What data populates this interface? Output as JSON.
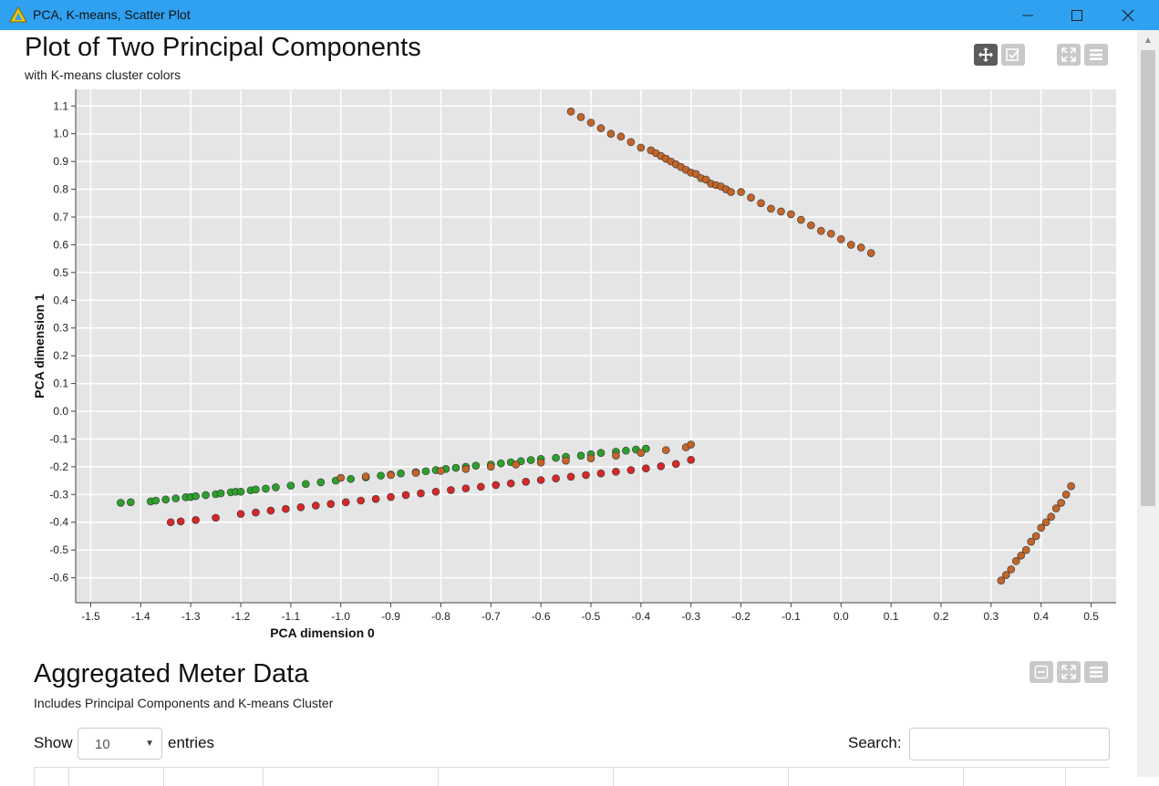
{
  "window": {
    "title": "PCA, K-means, Scatter Plot",
    "minimize": "—",
    "maximize": "☐",
    "close": "✕"
  },
  "plot": {
    "title": "Plot of Two Principal Components",
    "subtitle": "with K-means cluster colors",
    "tools": [
      "move-icon",
      "select-icon",
      "fullscreen-icon",
      "menu-icon"
    ]
  },
  "chart_data": {
    "type": "scatter",
    "xlabel": "PCA dimension 0",
    "ylabel": "PCA dimension 1",
    "xlim": [
      -1.53,
      0.55
    ],
    "ylim": [
      -0.69,
      1.16
    ],
    "xticks": [
      "-1.5",
      "-1.4",
      "-1.3",
      "-1.2",
      "-1.1",
      "-1.0",
      "-0.9",
      "-0.8",
      "-0.7",
      "-0.6",
      "-0.5",
      "-0.4",
      "-0.3",
      "-0.2",
      "-0.1",
      "0.0",
      "0.1",
      "0.2",
      "0.3",
      "0.4",
      "0.5"
    ],
    "yticks": [
      "1.1",
      "1.0",
      "0.9",
      "0.8",
      "0.7",
      "0.6",
      "0.5",
      "0.4",
      "0.3",
      "0.2",
      "0.1",
      "0.0",
      "-0.1",
      "-0.2",
      "-0.3",
      "-0.4",
      "-0.5",
      "-0.6"
    ],
    "grid": true,
    "series": [
      {
        "color": "#2ca02c",
        "x": [
          -1.44,
          -1.42,
          -1.38,
          -1.37,
          -1.35,
          -1.33,
          -1.31,
          -1.3,
          -1.29,
          -1.27,
          -1.25,
          -1.24,
          -1.22,
          -1.21,
          -1.2,
          -1.18,
          -1.17,
          -1.15,
          -1.13,
          -1.1,
          -1.07,
          -1.04,
          -1.01,
          -0.98,
          -0.95,
          -0.92,
          -0.9,
          -0.88,
          -0.85,
          -0.83,
          -0.81,
          -0.79,
          -0.77,
          -0.75,
          -0.73,
          -0.7,
          -0.68,
          -0.66,
          -0.64,
          -0.62,
          -0.6,
          -0.57,
          -0.55,
          -0.52,
          -0.5,
          -0.48,
          -0.45,
          -0.43,
          -0.41,
          -0.39
        ],
        "y": [
          -0.33,
          -0.328,
          -0.325,
          -0.322,
          -0.318,
          -0.314,
          -0.31,
          -0.309,
          -0.306,
          -0.302,
          -0.299,
          -0.296,
          -0.292,
          -0.29,
          -0.29,
          -0.285,
          -0.282,
          -0.279,
          -0.274,
          -0.268,
          -0.262,
          -0.256,
          -0.25,
          -0.244,
          -0.238,
          -0.232,
          -0.228,
          -0.224,
          -0.22,
          -0.216,
          -0.212,
          -0.208,
          -0.204,
          -0.2,
          -0.196,
          -0.192,
          -0.188,
          -0.184,
          -0.18,
          -0.176,
          -0.172,
          -0.168,
          -0.164,
          -0.16,
          -0.155,
          -0.15,
          -0.146,
          -0.142,
          -0.138,
          -0.135
        ]
      },
      {
        "color": "#d62728",
        "x": [
          -1.34,
          -1.32,
          -1.29,
          -1.25,
          -1.2,
          -1.17,
          -1.14,
          -1.11,
          -1.08,
          -1.05,
          -1.02,
          -0.99,
          -0.96,
          -0.93,
          -0.9,
          -0.87,
          -0.84,
          -0.81,
          -0.78,
          -0.75,
          -0.72,
          -0.69,
          -0.66,
          -0.63,
          -0.6,
          -0.57,
          -0.54,
          -0.51,
          -0.48,
          -0.45,
          -0.42,
          -0.39,
          -0.36,
          -0.33,
          -0.3
        ],
        "y": [
          -0.4,
          -0.397,
          -0.392,
          -0.384,
          -0.37,
          -0.365,
          -0.358,
          -0.352,
          -0.346,
          -0.34,
          -0.334,
          -0.328,
          -0.322,
          -0.316,
          -0.309,
          -0.302,
          -0.296,
          -0.29,
          -0.284,
          -0.278,
          -0.272,
          -0.266,
          -0.26,
          -0.254,
          -0.248,
          -0.242,
          -0.236,
          -0.23,
          -0.224,
          -0.218,
          -0.212,
          -0.206,
          -0.198,
          -0.19,
          -0.175
        ]
      },
      {
        "color": "#c1652a",
        "x": [
          -1.0,
          -0.95,
          -0.9,
          -0.85,
          -0.8,
          -0.75,
          -0.7,
          -0.65,
          -0.6,
          -0.55,
          -0.5,
          -0.45,
          -0.4,
          -0.35,
          -0.31,
          -0.3
        ],
        "y": [
          -0.24,
          -0.235,
          -0.23,
          -0.222,
          -0.215,
          -0.208,
          -0.2,
          -0.192,
          -0.185,
          -0.178,
          -0.17,
          -0.16,
          -0.15,
          -0.14,
          -0.13,
          -0.12
        ]
      },
      {
        "color": "#c1652a",
        "x": [
          -0.54,
          -0.52,
          -0.5,
          -0.48,
          -0.46,
          -0.44,
          -0.42,
          -0.4,
          -0.38,
          -0.37,
          -0.36,
          -0.35,
          -0.34,
          -0.33,
          -0.32,
          -0.31,
          -0.3,
          -0.29,
          -0.28,
          -0.27,
          -0.26,
          -0.25,
          -0.24,
          -0.23,
          -0.22,
          -0.2,
          -0.18,
          -0.16,
          -0.14,
          -0.12,
          -0.1,
          -0.08,
          -0.06,
          -0.04,
          -0.02,
          0.0,
          0.02,
          0.04,
          0.06
        ],
        "y": [
          1.08,
          1.06,
          1.04,
          1.02,
          1.0,
          0.99,
          0.97,
          0.95,
          0.94,
          0.93,
          0.92,
          0.91,
          0.9,
          0.89,
          0.88,
          0.87,
          0.86,
          0.855,
          0.84,
          0.835,
          0.82,
          0.815,
          0.81,
          0.8,
          0.79,
          0.79,
          0.77,
          0.75,
          0.73,
          0.72,
          0.71,
          0.69,
          0.67,
          0.65,
          0.64,
          0.62,
          0.6,
          0.59,
          0.57
        ]
      },
      {
        "color": "#c1652a",
        "x": [
          0.32,
          0.33,
          0.34,
          0.35,
          0.36,
          0.37,
          0.38,
          0.39,
          0.4,
          0.41,
          0.42,
          0.43,
          0.44,
          0.45,
          0.46
        ],
        "y": [
          -0.61,
          -0.59,
          -0.57,
          -0.54,
          -0.52,
          -0.5,
          -0.47,
          -0.45,
          -0.42,
          -0.4,
          -0.38,
          -0.35,
          -0.33,
          -0.3,
          -0.27
        ]
      }
    ]
  },
  "table_section": {
    "title": "Aggregated Meter Data",
    "subtitle": "Includes Principal Components and K-means Cluster",
    "show_label": "Show",
    "entries_value": "10",
    "entries_label": "entries",
    "search_label": "Search:"
  }
}
